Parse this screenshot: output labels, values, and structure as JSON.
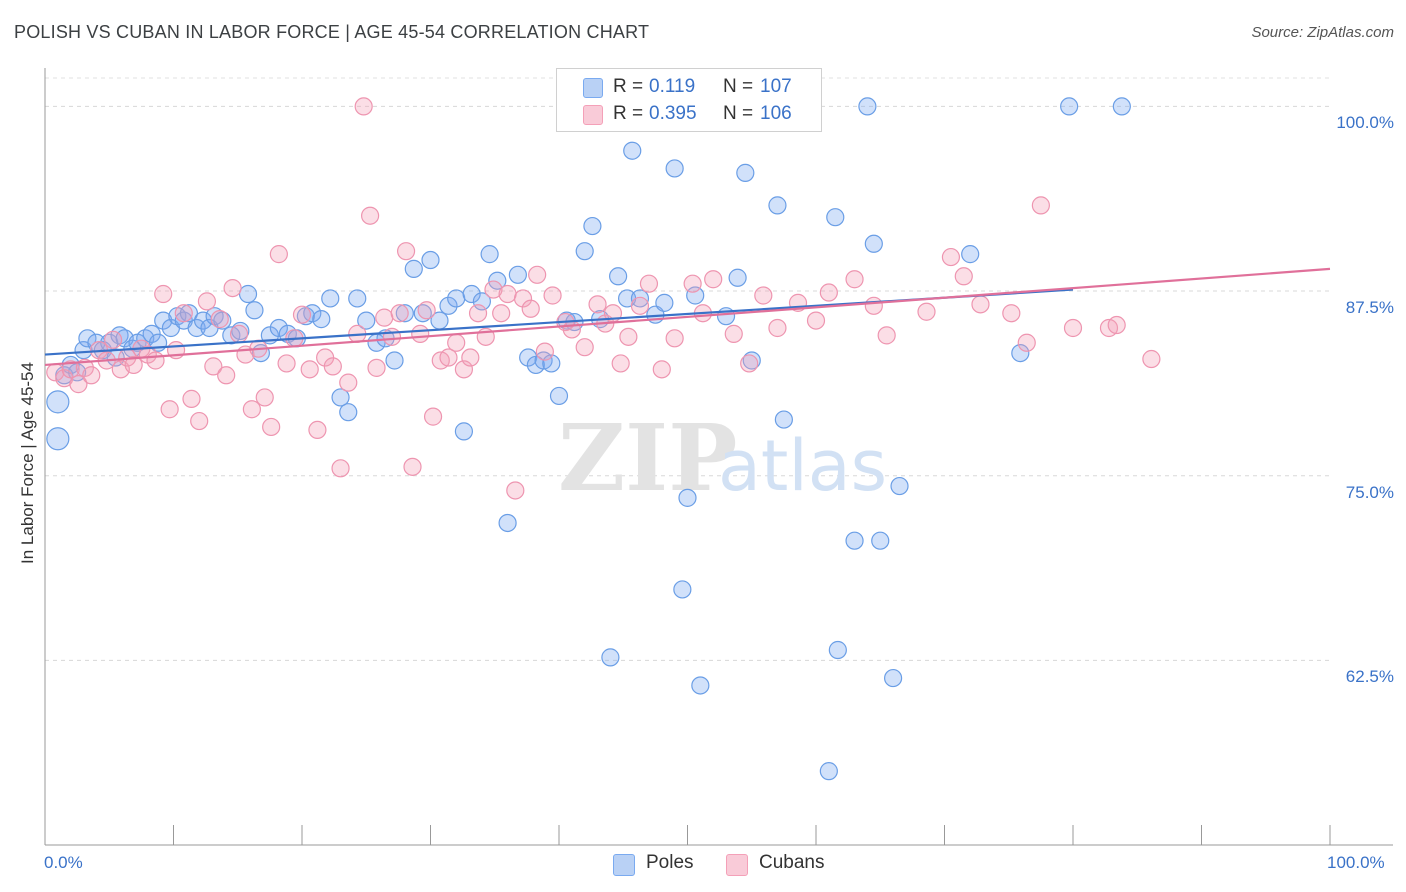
{
  "header": {
    "title": "POLISH VS CUBAN IN LABOR FORCE | AGE 45-54 CORRELATION CHART",
    "source": "Source: ZipAtlas.com"
  },
  "watermark": {
    "zip": "ZIP",
    "atlas": "atlas"
  },
  "legend": {
    "r_label": "R =",
    "n_label": "N =",
    "poles": {
      "r": "0.119",
      "n": "107",
      "color": "#7aaaf0"
    },
    "cubans": {
      "r": "0.395",
      "n": "106",
      "color": "#f4a0b8"
    }
  },
  "bottom_legend": {
    "poles": "Poles",
    "cubans": "Cubans"
  },
  "chart_data": {
    "type": "scatter",
    "title": "POLISH VS CUBAN IN LABOR FORCE | AGE 45-54 CORRELATION CHART",
    "ylabel": "In Labor Force | Age 45-54",
    "xlabel": "",
    "xlim": [
      0,
      100
    ],
    "ylim": [
      50,
      102.6
    ],
    "x_tick_labels": [
      "0.0%",
      "100.0%"
    ],
    "y_ticks": [
      {
        "value": 62.5,
        "label": "62.5%"
      },
      {
        "value": 75.0,
        "label": "75.0%"
      },
      {
        "value": 87.5,
        "label": "87.5%"
      },
      {
        "value": 100.0,
        "label": "100.0%"
      }
    ],
    "grid": "horizontal dashed",
    "legend_position": "top-center",
    "series": [
      {
        "name": "Poles",
        "color": "#7aaaf0",
        "trend": {
          "x0": 0,
          "y0": 83.2,
          "x1": 80,
          "y1": 87.6
        },
        "points": [
          [
            1.0,
            77.5
          ],
          [
            1.0,
            80.0
          ],
          [
            1.5,
            81.8
          ],
          [
            2.0,
            82.5
          ],
          [
            2.5,
            82.0
          ],
          [
            3.0,
            83.5
          ],
          [
            3.3,
            84.3
          ],
          [
            4.0,
            84.0
          ],
          [
            4.5,
            83.5
          ],
          [
            5.0,
            84.0
          ],
          [
            5.5,
            83.0
          ],
          [
            5.8,
            84.5
          ],
          [
            6.2,
            84.3
          ],
          [
            6.8,
            83.6
          ],
          [
            7.2,
            84.0
          ],
          [
            7.8,
            84.3
          ],
          [
            8.3,
            84.6
          ],
          [
            8.8,
            84.0
          ],
          [
            9.2,
            85.5
          ],
          [
            9.8,
            85.0
          ],
          [
            10.3,
            85.8
          ],
          [
            10.8,
            85.5
          ],
          [
            11.2,
            86.0
          ],
          [
            11.8,
            85.0
          ],
          [
            12.3,
            85.5
          ],
          [
            12.8,
            85.0
          ],
          [
            13.2,
            85.8
          ],
          [
            13.8,
            85.5
          ],
          [
            14.5,
            84.5
          ],
          [
            15.2,
            84.8
          ],
          [
            15.8,
            87.3
          ],
          [
            16.3,
            86.2
          ],
          [
            16.8,
            83.3
          ],
          [
            17.5,
            84.5
          ],
          [
            18.2,
            85.0
          ],
          [
            18.9,
            84.6
          ],
          [
            19.6,
            84.3
          ],
          [
            20.3,
            85.8
          ],
          [
            20.8,
            86.0
          ],
          [
            21.5,
            85.6
          ],
          [
            22.2,
            87.0
          ],
          [
            23.0,
            80.3
          ],
          [
            23.6,
            79.3
          ],
          [
            24.3,
            87.0
          ],
          [
            25.0,
            85.5
          ],
          [
            25.8,
            84.0
          ],
          [
            26.5,
            84.3
          ],
          [
            27.2,
            82.8
          ],
          [
            28.0,
            86.0
          ],
          [
            28.7,
            89.0
          ],
          [
            29.4,
            86.0
          ],
          [
            30.0,
            89.6
          ],
          [
            30.7,
            85.5
          ],
          [
            31.4,
            86.5
          ],
          [
            32.0,
            87.0
          ],
          [
            32.6,
            78.0
          ],
          [
            33.2,
            87.3
          ],
          [
            34.0,
            86.8
          ],
          [
            34.6,
            90.0
          ],
          [
            35.2,
            88.2
          ],
          [
            36.0,
            71.8
          ],
          [
            36.8,
            88.6
          ],
          [
            37.6,
            83.0
          ],
          [
            38.2,
            82.5
          ],
          [
            38.8,
            82.8
          ],
          [
            39.4,
            82.6
          ],
          [
            40.0,
            80.4
          ],
          [
            40.6,
            85.5
          ],
          [
            41.2,
            85.4
          ],
          [
            42.0,
            90.2
          ],
          [
            42.6,
            91.9
          ],
          [
            43.2,
            85.6
          ],
          [
            44.0,
            62.7
          ],
          [
            44.6,
            88.5
          ],
          [
            45.3,
            87.0
          ],
          [
            45.7,
            97.0
          ],
          [
            46.3,
            87.0
          ],
          [
            46.8,
            100.0
          ],
          [
            47.5,
            85.9
          ],
          [
            48.2,
            86.7
          ],
          [
            49.0,
            95.8
          ],
          [
            49.6,
            67.3
          ],
          [
            50.0,
            73.5
          ],
          [
            50.6,
            87.2
          ],
          [
            51.0,
            60.8
          ],
          [
            52.0,
            99.6
          ],
          [
            53.0,
            85.8
          ],
          [
            53.9,
            88.4
          ],
          [
            54.5,
            95.5
          ],
          [
            55.0,
            82.8
          ],
          [
            56.0,
            100.0
          ],
          [
            57.0,
            93.3
          ],
          [
            57.5,
            78.8
          ],
          [
            59.5,
            100.0
          ],
          [
            61.0,
            55.0
          ],
          [
            61.5,
            92.5
          ],
          [
            61.7,
            63.2
          ],
          [
            63.0,
            70.6
          ],
          [
            64.0,
            100.0
          ],
          [
            64.5,
            90.7
          ],
          [
            65.0,
            70.6
          ],
          [
            66.0,
            61.3
          ],
          [
            66.5,
            74.3
          ],
          [
            72.0,
            90.0
          ],
          [
            75.9,
            83.3
          ],
          [
            79.7,
            100.0
          ],
          [
            83.8,
            100.0
          ]
        ]
      },
      {
        "name": "Cubans",
        "color": "#f4a0b8",
        "trend": {
          "x0": 0,
          "y0": 82.5,
          "x1": 100,
          "y1": 89.0
        },
        "points": [
          [
            0.8,
            82.0
          ],
          [
            1.5,
            81.6
          ],
          [
            2.0,
            82.2
          ],
          [
            2.6,
            81.2
          ],
          [
            3.1,
            82.3
          ],
          [
            3.6,
            81.8
          ],
          [
            4.2,
            83.5
          ],
          [
            4.8,
            82.8
          ],
          [
            5.3,
            84.2
          ],
          [
            5.9,
            82.2
          ],
          [
            6.4,
            83.0
          ],
          [
            6.9,
            82.5
          ],
          [
            7.5,
            83.6
          ],
          [
            8.0,
            83.2
          ],
          [
            8.6,
            82.8
          ],
          [
            9.2,
            87.3
          ],
          [
            9.7,
            79.5
          ],
          [
            10.2,
            83.5
          ],
          [
            10.8,
            86.0
          ],
          [
            11.4,
            80.2
          ],
          [
            12.0,
            78.7
          ],
          [
            12.6,
            86.8
          ],
          [
            13.1,
            82.4
          ],
          [
            13.6,
            85.6
          ],
          [
            14.1,
            81.8
          ],
          [
            14.6,
            87.7
          ],
          [
            15.1,
            84.6
          ],
          [
            15.6,
            83.2
          ],
          [
            16.1,
            79.5
          ],
          [
            16.6,
            83.6
          ],
          [
            17.1,
            80.3
          ],
          [
            17.6,
            78.3
          ],
          [
            18.2,
            90.0
          ],
          [
            18.8,
            82.6
          ],
          [
            19.4,
            84.3
          ],
          [
            20.0,
            85.9
          ],
          [
            20.6,
            82.2
          ],
          [
            21.2,
            78.1
          ],
          [
            21.8,
            83.0
          ],
          [
            22.4,
            82.4
          ],
          [
            23.0,
            75.5
          ],
          [
            23.6,
            81.3
          ],
          [
            24.3,
            84.6
          ],
          [
            24.8,
            100.0
          ],
          [
            25.3,
            92.6
          ],
          [
            25.8,
            82.3
          ],
          [
            26.4,
            85.7
          ],
          [
            27.0,
            84.4
          ],
          [
            27.6,
            86.0
          ],
          [
            28.1,
            90.2
          ],
          [
            28.6,
            75.6
          ],
          [
            29.2,
            84.6
          ],
          [
            29.7,
            86.2
          ],
          [
            30.2,
            79.0
          ],
          [
            30.8,
            82.8
          ],
          [
            31.4,
            83.0
          ],
          [
            32.0,
            84.0
          ],
          [
            32.6,
            82.2
          ],
          [
            33.1,
            83.0
          ],
          [
            33.7,
            86.0
          ],
          [
            34.3,
            84.4
          ],
          [
            34.9,
            87.6
          ],
          [
            35.5,
            86.0
          ],
          [
            36.0,
            87.3
          ],
          [
            36.6,
            74.0
          ],
          [
            37.2,
            87.0
          ],
          [
            37.8,
            86.3
          ],
          [
            38.3,
            88.6
          ],
          [
            38.9,
            83.4
          ],
          [
            39.5,
            87.2
          ],
          [
            40.5,
            85.4
          ],
          [
            41.0,
            84.9
          ],
          [
            42.0,
            83.7
          ],
          [
            43.0,
            86.6
          ],
          [
            43.6,
            85.3
          ],
          [
            44.2,
            86.0
          ],
          [
            44.8,
            82.6
          ],
          [
            45.4,
            84.4
          ],
          [
            46.3,
            86.5
          ],
          [
            47.0,
            88.0
          ],
          [
            48.0,
            82.2
          ],
          [
            49.0,
            84.3
          ],
          [
            50.4,
            88.0
          ],
          [
            51.2,
            86.0
          ],
          [
            52.0,
            88.3
          ],
          [
            53.6,
            84.6
          ],
          [
            54.8,
            82.6
          ],
          [
            55.9,
            87.2
          ],
          [
            57.0,
            85.0
          ],
          [
            58.6,
            86.7
          ],
          [
            60.0,
            85.5
          ],
          [
            61.0,
            87.4
          ],
          [
            63.0,
            88.3
          ],
          [
            64.5,
            86.5
          ],
          [
            65.5,
            84.5
          ],
          [
            68.6,
            86.1
          ],
          [
            70.5,
            89.8
          ],
          [
            71.5,
            88.5
          ],
          [
            72.8,
            86.6
          ],
          [
            75.2,
            86.0
          ],
          [
            76.4,
            84.0
          ],
          [
            77.5,
            93.3
          ],
          [
            80.0,
            85.0
          ],
          [
            82.8,
            85.0
          ],
          [
            83.4,
            85.2
          ],
          [
            86.1,
            82.9
          ]
        ]
      }
    ]
  }
}
